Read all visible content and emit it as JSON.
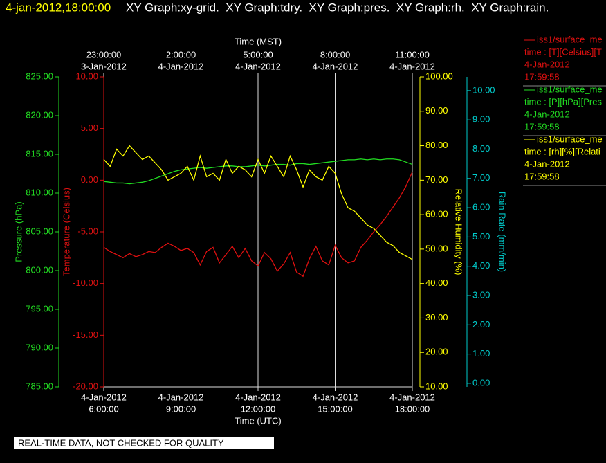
{
  "header": {
    "timestamp": "4-jan-2012,18:00:00",
    "graphs": "XY Graph:xy-grid.  XY Graph:tdry.  XY Graph:pres.  XY Graph:rh.  XY Graph:rain."
  },
  "footer": "REAL-TIME DATA, NOT CHECKED FOR QUALITY",
  "chart_data": {
    "type": "line",
    "xlabel": "Time (UTC)",
    "x2label": "Time (MST)",
    "xlim": [
      6,
      18
    ],
    "xticks": [
      {
        "value": 6,
        "label": "6:00:00"
      },
      {
        "value": 9,
        "label": "9:00:00"
      },
      {
        "value": 12,
        "label": "12:00:00"
      },
      {
        "value": 15,
        "label": "15:00:00"
      },
      {
        "value": 18,
        "label": "18:00:00"
      }
    ],
    "xtick_dates": [
      "4-Jan-2012",
      "4-Jan-2012",
      "4-Jan-2012",
      "4-Jan-2012",
      "4-Jan-2012"
    ],
    "x2ticks": [
      {
        "value": 6,
        "label": "23:00:00"
      },
      {
        "value": 9,
        "label": "2:00:00"
      },
      {
        "value": 12,
        "label": "5:00:00"
      },
      {
        "value": 15,
        "label": "8:00:00"
      },
      {
        "value": 18,
        "label": "11:00:00"
      }
    ],
    "x2tick_dates": [
      "3-Jan-2012",
      "4-Jan-2012",
      "4-Jan-2012",
      "4-Jan-2012",
      "4-Jan-2012"
    ],
    "grid": true,
    "ylabel": "Temperature (Celsius)",
    "ycolor": "#dd1111",
    "ylim": [
      -20,
      10
    ],
    "yticks": [
      {
        "value": -20,
        "label": "-20.00"
      },
      {
        "value": -15,
        "label": "-15.00"
      },
      {
        "value": -10,
        "label": "-10.00"
      },
      {
        "value": -5,
        "label": "-5.00"
      },
      {
        "value": 0,
        "label": "0.00"
      },
      {
        "value": 5,
        "label": "5.00"
      },
      {
        "value": 10,
        "label": "10.00"
      }
    ],
    "y2label": "Relative Humidity (%)",
    "y2color": "#ffff00",
    "y2lim": [
      10,
      100
    ],
    "y2ticks": [
      {
        "value": 10,
        "label": "10.00"
      },
      {
        "value": 20,
        "label": "20.00"
      },
      {
        "value": 30,
        "label": "30.00"
      },
      {
        "value": 40,
        "label": "40.00"
      },
      {
        "value": 50,
        "label": "50.00"
      },
      {
        "value": 60,
        "label": "60.00"
      },
      {
        "value": 70,
        "label": "70.00"
      },
      {
        "value": 80,
        "label": "80.00"
      },
      {
        "value": 90,
        "label": "90.00"
      },
      {
        "value": 100,
        "label": "100.00"
      }
    ],
    "y3label": "Pressure (hPa)",
    "y3color": "#22dd22",
    "y3lim": [
      785,
      825
    ],
    "y3ticks": [
      {
        "value": 785,
        "label": "785.00"
      },
      {
        "value": 790,
        "label": "790.00"
      },
      {
        "value": 795,
        "label": "795.00"
      },
      {
        "value": 800,
        "label": "800.00"
      },
      {
        "value": 805,
        "label": "805.00"
      },
      {
        "value": 810,
        "label": "810.00"
      },
      {
        "value": 815,
        "label": "815.00"
      },
      {
        "value": 820,
        "label": "820.00"
      },
      {
        "value": 825,
        "label": "825.00"
      }
    ],
    "y4label": "Rain Rate (mm/min)",
    "y4color": "#00cccc",
    "y4lim": [
      -0.12,
      10.47
    ],
    "y4ticks": [
      {
        "value": 0,
        "label": "0.00"
      },
      {
        "value": 1,
        "label": "1.00"
      },
      {
        "value": 2,
        "label": "2.00"
      },
      {
        "value": 3,
        "label": "3.00"
      },
      {
        "value": 4,
        "label": "4.00"
      },
      {
        "value": 5,
        "label": "5.00"
      },
      {
        "value": 6,
        "label": "6.00"
      },
      {
        "value": 7,
        "label": "7.00"
      },
      {
        "value": 8,
        "label": "8.00"
      },
      {
        "value": 9,
        "label": "9.00"
      },
      {
        "value": 10,
        "label": "10.00"
      }
    ],
    "x": [
      6,
      6.25,
      6.5,
      6.75,
      7,
      7.25,
      7.5,
      7.75,
      8,
      8.25,
      8.5,
      8.75,
      9,
      9.25,
      9.5,
      9.75,
      10,
      10.25,
      10.5,
      10.75,
      11,
      11.25,
      11.5,
      11.75,
      12,
      12.25,
      12.5,
      12.75,
      13,
      13.25,
      13.5,
      13.75,
      14,
      14.25,
      14.5,
      14.75,
      15,
      15.25,
      15.5,
      15.75,
      16,
      16.25,
      16.5,
      16.75,
      17,
      17.25,
      17.5,
      17.75,
      18
    ],
    "series": [
      {
        "name": "iss1/surface_me",
        "legend_lines": [
          "time : [T][Celsius][T",
          "4-Jan-2012",
          "17:59:58"
        ],
        "color": "#e01010",
        "axis": "y",
        "values": [
          -6.5,
          -6.9,
          -7.2,
          -7.5,
          -7.1,
          -7.4,
          -7.2,
          -6.9,
          -7.0,
          -6.5,
          -6.1,
          -6.4,
          -6.8,
          -6.6,
          -7.0,
          -8.2,
          -6.9,
          -6.5,
          -8.0,
          -7.2,
          -6.4,
          -7.5,
          -6.6,
          -7.8,
          -8.3,
          -7.0,
          -7.6,
          -8.8,
          -8.1,
          -7.0,
          -8.9,
          -9.3,
          -7.6,
          -6.4,
          -7.8,
          -8.2,
          -6.3,
          -7.5,
          -8.0,
          -7.8,
          -6.5,
          -5.8,
          -5.0,
          -4.3,
          -3.5,
          -2.6,
          -1.7,
          -0.6,
          0.8
        ]
      },
      {
        "name": "iss1/surface_me",
        "legend_lines": [
          "time : [P][hPa][Pres",
          "4-Jan-2012",
          "17:59:58"
        ],
        "color": "#22dd22",
        "axis": "y3",
        "values": [
          811.5,
          811.4,
          811.3,
          811.3,
          811.2,
          811.3,
          811.4,
          811.6,
          811.9,
          812.2,
          812.5,
          812.8,
          813.0,
          813.1,
          813.2,
          813.3,
          813.2,
          813.3,
          813.4,
          813.5,
          813.5,
          813.4,
          813.4,
          813.5,
          813.6,
          813.5,
          813.6,
          813.7,
          813.7,
          813.6,
          813.8,
          813.8,
          813.7,
          813.8,
          813.9,
          814.0,
          814.1,
          814.2,
          814.3,
          814.3,
          814.4,
          814.3,
          814.4,
          814.3,
          814.4,
          814.4,
          814.3,
          814.0,
          813.7
        ]
      },
      {
        "name": "iss1/surface_me",
        "legend_lines": [
          "time : [rh][%][Relati",
          "4-Jan-2012",
          "17:59:58"
        ],
        "color": "#ffff00",
        "axis": "y2",
        "values": [
          76,
          74,
          79,
          77,
          80,
          78,
          76,
          77,
          75,
          73,
          70,
          71,
          72,
          74,
          70,
          77,
          71,
          72,
          70,
          76,
          72,
          74,
          73,
          71,
          76,
          72,
          77,
          74,
          71,
          77,
          73,
          68,
          73,
          71,
          70,
          74,
          72,
          66,
          62,
          61,
          59,
          57,
          56,
          54,
          52,
          51,
          49,
          48,
          47
        ]
      }
    ]
  }
}
